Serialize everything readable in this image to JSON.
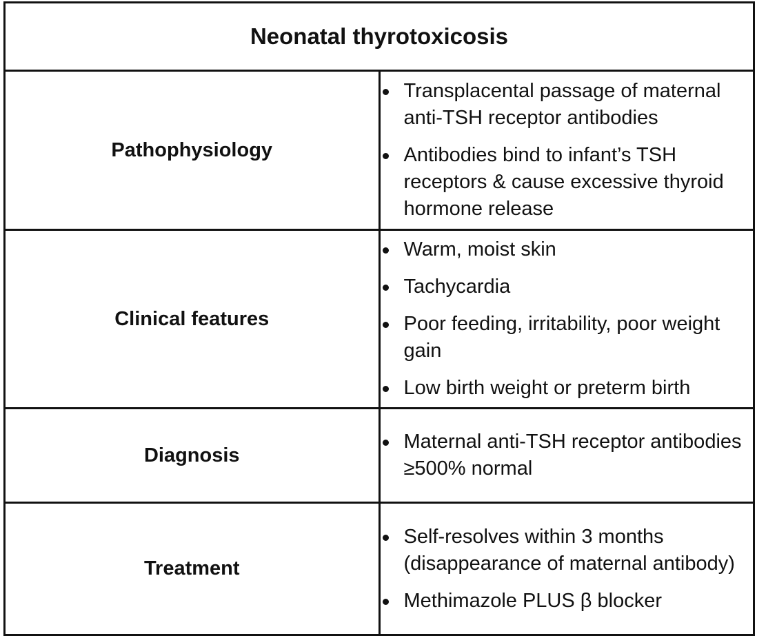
{
  "title": "Neonatal thyrotoxicosis",
  "rows": [
    {
      "label": "Pathophysiology",
      "items": [
        "Transplacental passage of maternal anti-TSH receptor antibodies",
        "Antibodies bind to infant’s TSH receptors & cause excessive thyroid hormone release"
      ]
    },
    {
      "label": "Clinical features",
      "items": [
        "Warm, moist skin",
        "Tachycardia",
        "Poor feeding, irritability, poor weight gain",
        "Low birth weight or preterm birth"
      ]
    },
    {
      "label": "Diagnosis",
      "items": [
        "Maternal anti-TSH receptor antibodies ≥500% normal"
      ]
    },
    {
      "label": "Treatment",
      "items": [
        "Self-resolves within 3 months (disappearance of maternal antibody)",
        "Methimazole PLUS β blocker"
      ]
    }
  ]
}
